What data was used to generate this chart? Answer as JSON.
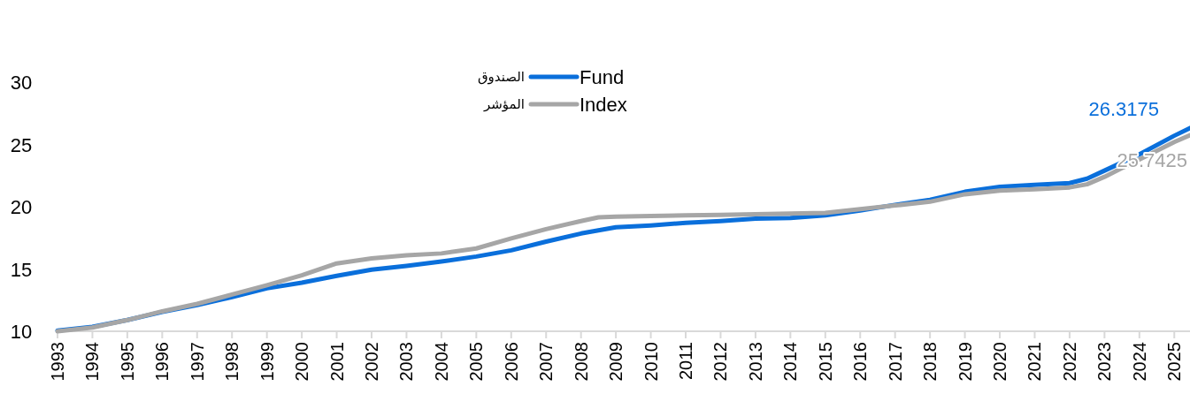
{
  "chart_data": {
    "type": "line",
    "x": [
      1993,
      1994,
      1995,
      1996,
      1997,
      1998,
      1999,
      2000,
      2001,
      2002,
      2003,
      2004,
      2005,
      2006,
      2007,
      2008,
      2008.5,
      2009,
      2010,
      2011,
      2012,
      2013,
      2014,
      2015,
      2016,
      2017,
      2018,
      2019,
      2020,
      2021,
      2022,
      2022.5,
      2023,
      2024,
      2025,
      2025.45
    ],
    "series": [
      {
        "name": "Fund",
        "color": "#0a6fdb",
        "values": [
          10.05,
          10.35,
          10.9,
          11.55,
          12.1,
          12.75,
          13.45,
          13.9,
          14.45,
          14.95,
          15.25,
          15.6,
          16.0,
          16.5,
          17.2,
          17.85,
          18.1,
          18.35,
          18.5,
          18.7,
          18.85,
          19.05,
          19.1,
          19.3,
          19.7,
          20.15,
          20.55,
          21.2,
          21.6,
          21.75,
          21.9,
          22.25,
          22.9,
          24.2,
          25.7,
          26.3175
        ],
        "value_labels": [
          null,
          null,
          null,
          null,
          null,
          null,
          null,
          null,
          null,
          null,
          null,
          null,
          null,
          null,
          null,
          null,
          null,
          null,
          null,
          null,
          null,
          null,
          null,
          null,
          null,
          null,
          null,
          null,
          null,
          null,
          null,
          null,
          null,
          null,
          null,
          "26.3175"
        ]
      },
      {
        "name": "Index",
        "color": "#a6a6a6",
        "values": [
          10.0,
          10.3,
          10.9,
          11.6,
          12.2,
          12.95,
          13.7,
          14.5,
          15.45,
          15.85,
          16.1,
          16.25,
          16.65,
          17.45,
          18.2,
          18.85,
          19.15,
          19.2,
          19.25,
          19.3,
          19.35,
          19.4,
          19.45,
          19.5,
          19.8,
          20.1,
          20.4,
          21.0,
          21.3,
          21.4,
          21.55,
          21.8,
          22.4,
          23.8,
          25.2,
          25.7425
        ],
        "value_labels": [
          null,
          null,
          null,
          null,
          null,
          null,
          null,
          null,
          null,
          null,
          null,
          null,
          null,
          null,
          null,
          null,
          null,
          null,
          null,
          null,
          null,
          null,
          null,
          null,
          null,
          null,
          null,
          null,
          null,
          null,
          null,
          null,
          null,
          null,
          null,
          "25.7425"
        ]
      }
    ],
    "annotations": [
      "الصندوق",
      "المؤشر"
    ],
    "xlim": [
      1993,
      2025.45
    ],
    "xticks": [
      1993,
      1994,
      1995,
      1996,
      1997,
      1998,
      1999,
      2000,
      2001,
      2002,
      2003,
      2004,
      2005,
      2006,
      2007,
      2008,
      2009,
      2010,
      2011,
      2012,
      2013,
      2014,
      2015,
      2016,
      2017,
      2018,
      2019,
      2020,
      2021,
      2022,
      2023,
      2024,
      2025
    ],
    "ylim": [
      10,
      30
    ],
    "yticks": [
      10,
      15,
      20,
      25,
      30
    ],
    "grid": false,
    "legend": "top",
    "line_style": "solid",
    "marker": "none"
  }
}
